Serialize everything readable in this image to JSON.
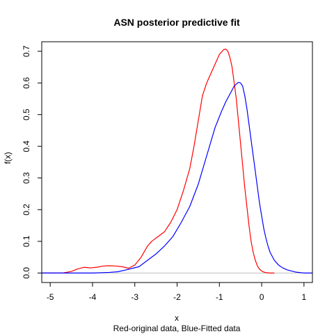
{
  "chart_data": {
    "type": "line",
    "title": "ASN posterior predictive fit",
    "xlabel": "x",
    "xsublabel": "Red-original data, Blue-Fitted data",
    "ylabel": "f(x)",
    "xlim": [
      -5.2,
      1.2
    ],
    "ylim": [
      -0.03,
      0.73
    ],
    "xticks": [
      -5,
      -4,
      -3,
      -2,
      -1,
      0,
      1
    ],
    "yticks": [
      0.0,
      0.1,
      0.2,
      0.3,
      0.4,
      0.5,
      0.6,
      0.7
    ],
    "xtick_labels": [
      "-5",
      "-4",
      "-3",
      "-2",
      "-1",
      "0",
      "1"
    ],
    "ytick_labels": [
      "0.0",
      "0.1",
      "0.2",
      "0.3",
      "0.4",
      "0.5",
      "0.6",
      "0.7"
    ],
    "grid": false,
    "baseline": {
      "y": 0,
      "color": "#bebebe"
    },
    "series": [
      {
        "color": "#ff0000",
        "x": [
          -5.2,
          -4.7,
          -4.5,
          -4.35,
          -4.2,
          -4.05,
          -3.9,
          -3.75,
          -3.6,
          -3.45,
          -3.3,
          -3.15,
          -3.0,
          -2.85,
          -2.7,
          -2.6,
          -2.45,
          -2.3,
          -2.15,
          -2.0,
          -1.85,
          -1.7,
          -1.6,
          -1.5,
          -1.4,
          -1.3,
          -1.2,
          -1.1,
          -1.0,
          -0.9,
          -0.85,
          -0.8,
          -0.75,
          -0.7,
          -0.65,
          -0.6,
          -0.55,
          -0.5,
          -0.45,
          -0.4,
          -0.35,
          -0.3,
          -0.25,
          -0.2,
          -0.15,
          -0.1,
          -0.05,
          0.0,
          0.05,
          0.1,
          0.2,
          0.3
        ],
        "y": [
          0.0,
          0.0,
          0.005,
          0.013,
          0.018,
          0.016,
          0.018,
          0.022,
          0.023,
          0.022,
          0.02,
          0.015,
          0.025,
          0.05,
          0.085,
          0.1,
          0.115,
          0.13,
          0.16,
          0.2,
          0.26,
          0.33,
          0.4,
          0.48,
          0.56,
          0.6,
          0.63,
          0.66,
          0.69,
          0.705,
          0.707,
          0.7,
          0.68,
          0.65,
          0.6,
          0.55,
          0.48,
          0.41,
          0.34,
          0.27,
          0.21,
          0.15,
          0.1,
          0.065,
          0.04,
          0.022,
          0.012,
          0.006,
          0.003,
          0.001,
          0.0,
          0.0
        ]
      },
      {
        "color": "#0000ff",
        "x": [
          -5.2,
          -4.0,
          -3.6,
          -3.4,
          -3.2,
          -3.05,
          -2.9,
          -2.7,
          -2.5,
          -2.3,
          -2.1,
          -1.9,
          -1.7,
          -1.5,
          -1.3,
          -1.1,
          -0.95,
          -0.85,
          -0.75,
          -0.65,
          -0.55,
          -0.5,
          -0.45,
          -0.4,
          -0.35,
          -0.3,
          -0.25,
          -0.2,
          -0.15,
          -0.1,
          -0.05,
          0.0,
          0.05,
          0.1,
          0.15,
          0.2,
          0.3,
          0.4,
          0.5,
          0.6,
          0.8,
          1.0,
          1.2
        ],
        "y": [
          0.0,
          0.0,
          0.002,
          0.004,
          0.01,
          0.015,
          0.02,
          0.04,
          0.06,
          0.085,
          0.115,
          0.16,
          0.21,
          0.28,
          0.37,
          0.46,
          0.51,
          0.54,
          0.565,
          0.59,
          0.602,
          0.6,
          0.59,
          0.56,
          0.52,
          0.47,
          0.42,
          0.37,
          0.32,
          0.27,
          0.22,
          0.18,
          0.14,
          0.11,
          0.085,
          0.065,
          0.04,
          0.025,
          0.016,
          0.01,
          0.003,
          0.0,
          0.0
        ]
      }
    ]
  }
}
